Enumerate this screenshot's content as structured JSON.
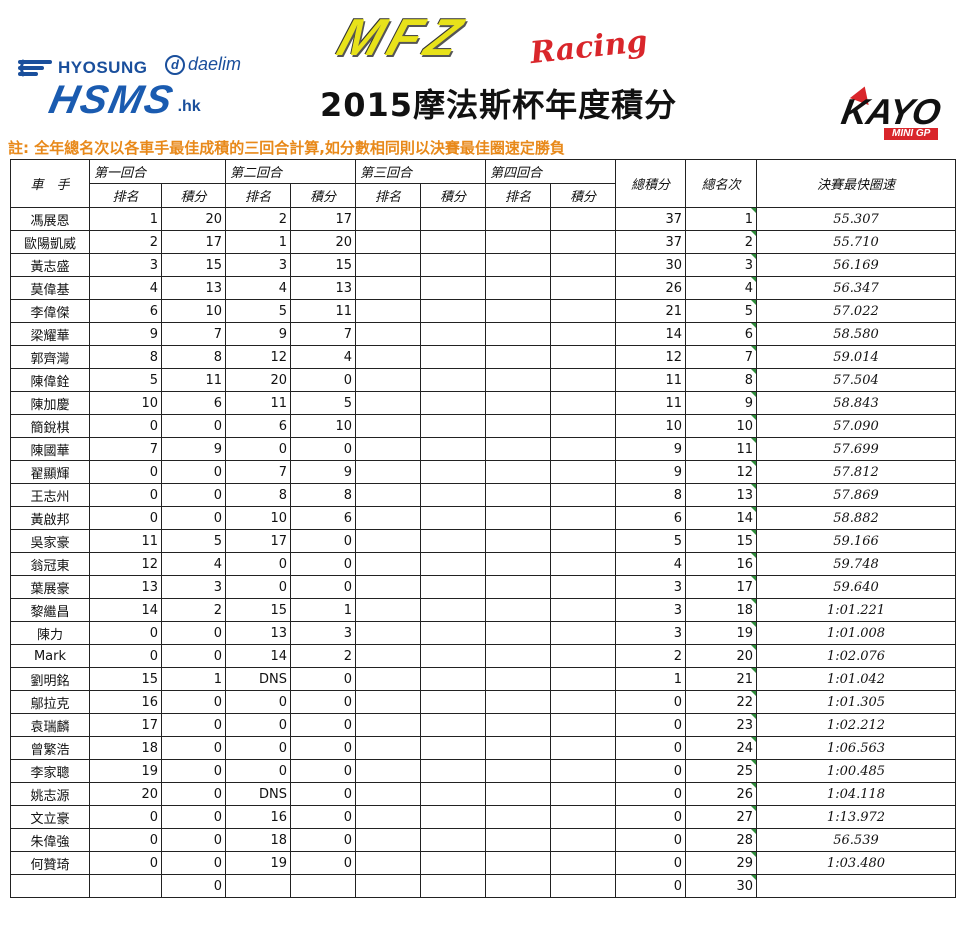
{
  "logos": {
    "hyosung": "HYOSUNG",
    "daelim_mark": "d",
    "daelim": "daelim",
    "hsms": "HSMS",
    "hsms_suffix": ".hk",
    "mfz": "MFZ",
    "mfz_racing": "Racing",
    "kayo": "KAYO",
    "kayo_sub": "MINI GP"
  },
  "title": "2015摩法斯杯年度積分",
  "note": "註: 全年總名次以各車手最佳成積的三回合計算,如分數相同則以決賽最佳圈速定勝負",
  "headers": {
    "rider": "車　手",
    "round1": "第一回合",
    "round2": "第二回合",
    "round3": "第三回合",
    "round4": "第四回合",
    "rank": "排名",
    "points": "積分",
    "total_points": "總積分",
    "overall_rank": "總名次",
    "best_lap": "決賽最快圈速"
  },
  "rows": [
    {
      "name": "馮展恩",
      "r1_rank": "1",
      "r1_pts": "20",
      "r2_rank": "2",
      "r2_pts": "17",
      "total": "37",
      "pos": "1",
      "lap": "55.307"
    },
    {
      "name": "歐陽凱威",
      "r1_rank": "2",
      "r1_pts": "17",
      "r2_rank": "1",
      "r2_pts": "20",
      "total": "37",
      "pos": "2",
      "lap": "55.710"
    },
    {
      "name": "黃志盛",
      "r1_rank": "3",
      "r1_pts": "15",
      "r2_rank": "3",
      "r2_pts": "15",
      "total": "30",
      "pos": "3",
      "lap": "56.169"
    },
    {
      "name": "莫偉基",
      "r1_rank": "4",
      "r1_pts": "13",
      "r2_rank": "4",
      "r2_pts": "13",
      "total": "26",
      "pos": "4",
      "lap": "56.347"
    },
    {
      "name": "李偉傑",
      "r1_rank": "6",
      "r1_pts": "10",
      "r2_rank": "5",
      "r2_pts": "11",
      "total": "21",
      "pos": "5",
      "lap": "57.022"
    },
    {
      "name": "梁耀華",
      "r1_rank": "9",
      "r1_pts": "7",
      "r2_rank": "9",
      "r2_pts": "7",
      "total": "14",
      "pos": "6",
      "lap": "58.580"
    },
    {
      "name": "郭齊灣",
      "r1_rank": "8",
      "r1_pts": "8",
      "r2_rank": "12",
      "r2_pts": "4",
      "total": "12",
      "pos": "7",
      "lap": "59.014"
    },
    {
      "name": "陳偉銓",
      "r1_rank": "5",
      "r1_pts": "11",
      "r2_rank": "20",
      "r2_pts": "0",
      "total": "11",
      "pos": "8",
      "lap": "57.504"
    },
    {
      "name": "陳加慶",
      "r1_rank": "10",
      "r1_pts": "6",
      "r2_rank": "11",
      "r2_pts": "5",
      "total": "11",
      "pos": "9",
      "lap": "58.843"
    },
    {
      "name": "簡銳棋",
      "r1_rank": "0",
      "r1_pts": "0",
      "r2_rank": "6",
      "r2_pts": "10",
      "total": "10",
      "pos": "10",
      "lap": "57.090"
    },
    {
      "name": "陳國華",
      "r1_rank": "7",
      "r1_pts": "9",
      "r2_rank": "0",
      "r2_pts": "0",
      "total": "9",
      "pos": "11",
      "lap": "57.699"
    },
    {
      "name": "翟顯輝",
      "r1_rank": "0",
      "r1_pts": "0",
      "r2_rank": "7",
      "r2_pts": "9",
      "total": "9",
      "pos": "12",
      "lap": "57.812"
    },
    {
      "name": "王志州",
      "r1_rank": "0",
      "r1_pts": "0",
      "r2_rank": "8",
      "r2_pts": "8",
      "total": "8",
      "pos": "13",
      "lap": "57.869"
    },
    {
      "name": "黃啟邦",
      "r1_rank": "0",
      "r1_pts": "0",
      "r2_rank": "10",
      "r2_pts": "6",
      "total": "6",
      "pos": "14",
      "lap": "58.882"
    },
    {
      "name": "吳家豪",
      "r1_rank": "11",
      "r1_pts": "5",
      "r2_rank": "17",
      "r2_pts": "0",
      "total": "5",
      "pos": "15",
      "lap": "59.166"
    },
    {
      "name": "翁冠東",
      "r1_rank": "12",
      "r1_pts": "4",
      "r2_rank": "0",
      "r2_pts": "0",
      "total": "4",
      "pos": "16",
      "lap": "59.748"
    },
    {
      "name": "葉展豪",
      "r1_rank": "13",
      "r1_pts": "3",
      "r2_rank": "0",
      "r2_pts": "0",
      "total": "3",
      "pos": "17",
      "lap": "59.640"
    },
    {
      "name": "黎繼昌",
      "r1_rank": "14",
      "r1_pts": "2",
      "r2_rank": "15",
      "r2_pts": "1",
      "total": "3",
      "pos": "18",
      "lap": "1:01.221"
    },
    {
      "name": "陳力",
      "r1_rank": "0",
      "r1_pts": "0",
      "r2_rank": "13",
      "r2_pts": "3",
      "total": "3",
      "pos": "19",
      "lap": "1:01.008"
    },
    {
      "name": "Mark",
      "r1_rank": "0",
      "r1_pts": "0",
      "r2_rank": "14",
      "r2_pts": "2",
      "total": "2",
      "pos": "20",
      "lap": "1:02.076"
    },
    {
      "name": "劉明銘",
      "r1_rank": "15",
      "r1_pts": "1",
      "r2_rank": "DNS",
      "r2_pts": "0",
      "total": "1",
      "pos": "21",
      "lap": "1:01.042"
    },
    {
      "name": "鄔拉克",
      "r1_rank": "16",
      "r1_pts": "0",
      "r2_rank": "0",
      "r2_pts": "0",
      "total": "0",
      "pos": "22",
      "lap": "1:01.305"
    },
    {
      "name": "袁瑞麟",
      "r1_rank": "17",
      "r1_pts": "0",
      "r2_rank": "0",
      "r2_pts": "0",
      "total": "0",
      "pos": "23",
      "lap": "1:02.212"
    },
    {
      "name": "曾繁浩",
      "r1_rank": "18",
      "r1_pts": "0",
      "r2_rank": "0",
      "r2_pts": "0",
      "total": "0",
      "pos": "24",
      "lap": "1:06.563"
    },
    {
      "name": "李家聰",
      "r1_rank": "19",
      "r1_pts": "0",
      "r2_rank": "0",
      "r2_pts": "0",
      "total": "0",
      "pos": "25",
      "lap": "1:00.485"
    },
    {
      "name": "姚志源",
      "r1_rank": "20",
      "r1_pts": "0",
      "r2_rank": "DNS",
      "r2_pts": "0",
      "total": "0",
      "pos": "26",
      "lap": "1:04.118"
    },
    {
      "name": "文立豪",
      "r1_rank": "0",
      "r1_pts": "0",
      "r2_rank": "16",
      "r2_pts": "0",
      "total": "0",
      "pos": "27",
      "lap": "1:13.972"
    },
    {
      "name": "朱偉強",
      "r1_rank": "0",
      "r1_pts": "0",
      "r2_rank": "18",
      "r2_pts": "0",
      "total": "0",
      "pos": "28",
      "lap": "56.539"
    },
    {
      "name": "何贊琦",
      "r1_rank": "0",
      "r1_pts": "0",
      "r2_rank": "19",
      "r2_pts": "0",
      "total": "0",
      "pos": "29",
      "lap": "1:03.480"
    },
    {
      "name": "",
      "r1_rank": "",
      "r1_pts": "0",
      "r2_rank": "",
      "r2_pts": "",
      "total": "0",
      "pos": "30",
      "lap": ""
    }
  ]
}
